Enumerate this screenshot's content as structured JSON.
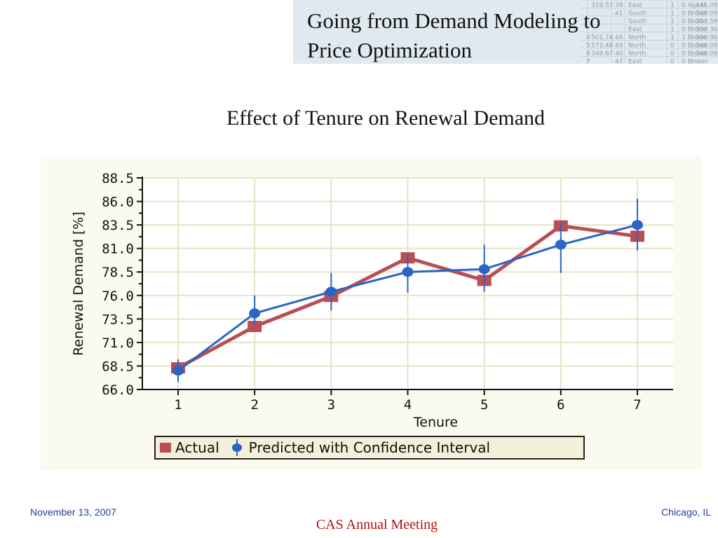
{
  "header": {
    "title": "Going from Demand Modeling to Price Optimization",
    "background_spreadsheet": [
      [
        "319.57",
        "38",
        "East",
        "1",
        "0 Agent",
        "146.09"
      ],
      [
        "",
        "41",
        "South",
        "1",
        "0 Broker",
        "146.09"
      ],
      [
        "",
        "",
        "South",
        "1",
        "0 Broker",
        "153.59"
      ],
      [
        "",
        "",
        "East",
        "1",
        "0 Broker",
        "106.36"
      ],
      [
        "501.74",
        "46",
        "North",
        "1",
        "1 Broker",
        "106.96"
      ],
      [
        "573.48",
        "49",
        "North",
        "0",
        "0 Broker",
        "146.09"
      ],
      [
        "349.67",
        "40",
        "North",
        "0",
        "0 Broker",
        "146.09"
      ],
      [
        "",
        "47",
        "East",
        "0",
        "0 Broker",
        ""
      ]
    ],
    "background_row_numbers": [
      "4",
      "5",
      "6",
      "7"
    ]
  },
  "subtitle": "Effect of Tenure on Renewal Demand",
  "chart_data": {
    "type": "line",
    "xlabel": "Tenure",
    "ylabel": "Renewal Demand [%]",
    "categories": [
      "1",
      "2",
      "3",
      "4",
      "5",
      "6",
      "7"
    ],
    "x": [
      1,
      2,
      3,
      4,
      5,
      6,
      7
    ],
    "ylim": [
      66.0,
      88.5
    ],
    "yticks": [
      "66.0",
      "68.5",
      "71.0",
      "73.5",
      "76.0",
      "78.5",
      "81.0",
      "83.5",
      "86.0",
      "88.5"
    ],
    "grid": true,
    "legend_position": "bottom",
    "series": [
      {
        "name": "Actual",
        "color": "#b84f55",
        "marker": "square",
        "values": [
          68.3,
          72.7,
          75.9,
          80.0,
          77.6,
          83.4,
          82.3
        ]
      },
      {
        "name": "Predicted with Confidence Interval",
        "color": "#2a64c5",
        "marker": "circle",
        "values": [
          68.0,
          74.1,
          76.4,
          78.5,
          78.8,
          81.4,
          83.5
        ],
        "ci_lower": [
          66.8,
          72.8,
          74.4,
          76.3,
          76.4,
          78.4,
          80.8
        ],
        "ci_upper": [
          69.2,
          76.0,
          78.4,
          80.3,
          81.4,
          83.8,
          86.3
        ]
      }
    ]
  },
  "footer": {
    "date": "November 13, 2007",
    "meeting": "CAS Annual Meeting",
    "location": "Chicago, IL"
  }
}
